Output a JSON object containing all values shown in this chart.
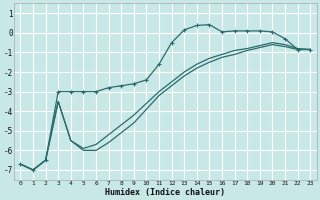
{
  "xlabel": "Humidex (Indice chaleur)",
  "bg_color": "#c8e8e8",
  "grid_color": "#ffffff",
  "line_color": "#2a6b6b",
  "xlim": [
    -0.5,
    23.5
  ],
  "ylim": [
    -7.5,
    1.5
  ],
  "yticks": [
    1,
    0,
    -1,
    -2,
    -3,
    -4,
    -5,
    -6,
    -7
  ],
  "xticks": [
    0,
    1,
    2,
    3,
    4,
    5,
    6,
    7,
    8,
    9,
    10,
    11,
    12,
    13,
    14,
    15,
    16,
    17,
    18,
    19,
    20,
    21,
    22,
    23
  ],
  "line1_x": [
    0,
    1,
    2,
    3,
    4,
    5,
    6,
    7,
    8,
    9,
    10,
    11,
    12,
    13,
    14,
    15,
    16,
    17,
    18,
    19,
    20,
    21,
    22,
    23
  ],
  "line1_y": [
    -6.7,
    -7.0,
    -6.5,
    -3.0,
    -3.0,
    -3.0,
    -3.0,
    -2.8,
    -2.7,
    -2.6,
    -2.4,
    -1.6,
    -0.5,
    0.15,
    0.38,
    0.42,
    0.05,
    0.1,
    0.1,
    0.1,
    0.05,
    -0.3,
    -0.85,
    -0.85
  ],
  "line2_x": [
    0,
    1,
    2,
    3,
    4,
    5,
    6,
    7,
    8,
    9,
    10,
    11,
    12,
    13,
    14,
    15,
    16,
    17,
    18,
    19,
    20,
    21,
    22,
    23
  ],
  "line2_y": [
    -6.7,
    -7.0,
    -6.5,
    -3.5,
    -5.5,
    -5.9,
    -5.7,
    -5.2,
    -4.7,
    -4.2,
    -3.6,
    -3.0,
    -2.5,
    -2.0,
    -1.6,
    -1.3,
    -1.1,
    -0.9,
    -0.8,
    -0.65,
    -0.5,
    -0.6,
    -0.8,
    -0.85
  ],
  "line3_x": [
    0,
    1,
    2,
    3,
    4,
    5,
    6,
    7,
    8,
    9,
    10,
    11,
    12,
    13,
    14,
    15,
    16,
    17,
    18,
    19,
    20,
    21,
    22,
    23
  ],
  "line3_y": [
    -6.7,
    -7.0,
    -6.5,
    -3.5,
    -5.5,
    -6.0,
    -6.0,
    -5.6,
    -5.1,
    -4.6,
    -3.9,
    -3.2,
    -2.7,
    -2.2,
    -1.8,
    -1.5,
    -1.25,
    -1.1,
    -0.9,
    -0.75,
    -0.6,
    -0.7,
    -0.85,
    -0.85
  ]
}
